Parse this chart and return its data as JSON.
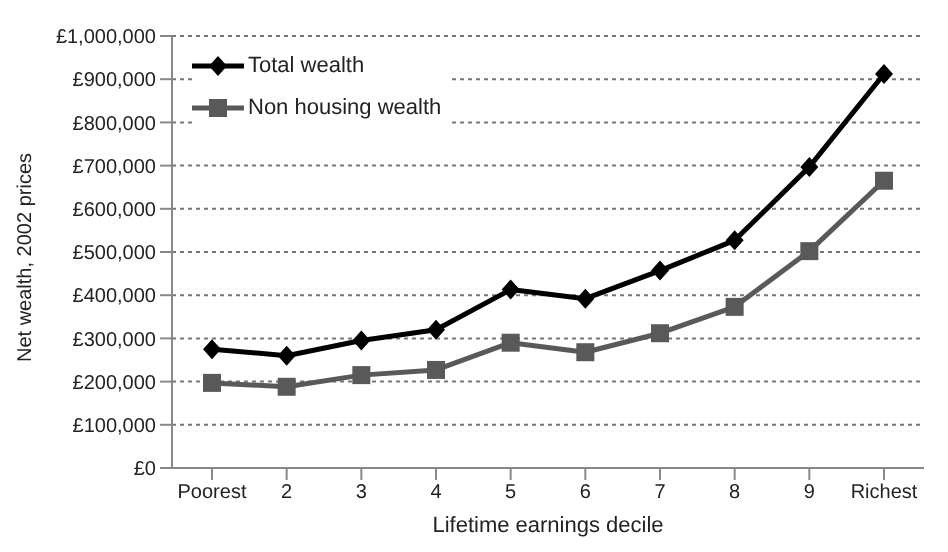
{
  "chart_data": {
    "type": "line",
    "xlabel": "Lifetime earnings decile",
    "ylabel": "Net wealth, 2002 prices",
    "categories": [
      "Poorest",
      "2",
      "3",
      "4",
      "5",
      "6",
      "7",
      "8",
      "9",
      "Richest"
    ],
    "series": [
      {
        "name": "Total wealth",
        "color": "#000000",
        "marker": "diamond",
        "values": [
          275000,
          260000,
          295000,
          320000,
          413000,
          392000,
          457000,
          527000,
          697000,
          912000
        ]
      },
      {
        "name": "Non housing wealth",
        "color": "#595959",
        "marker": "square",
        "values": [
          197000,
          188000,
          215000,
          227000,
          290000,
          268000,
          312000,
          373000,
          502000,
          665000
        ]
      }
    ],
    "ylim": [
      0,
      1000000
    ],
    "yticks": [
      {
        "value": 0,
        "label": "£0"
      },
      {
        "value": 100000,
        "label": "£100,000"
      },
      {
        "value": 200000,
        "label": "£200,000"
      },
      {
        "value": 300000,
        "label": "£300,000"
      },
      {
        "value": 400000,
        "label": "£400,000"
      },
      {
        "value": 500000,
        "label": "£500,000"
      },
      {
        "value": 600000,
        "label": "£600,000"
      },
      {
        "value": 700000,
        "label": "£700,000"
      },
      {
        "value": 800000,
        "label": "£800,000"
      },
      {
        "value": 900000,
        "label": "£900,000"
      },
      {
        "value": 1000000,
        "label": "£1,000,000"
      }
    ],
    "grid": "y",
    "line_style": "solid",
    "legend": "top left"
  }
}
